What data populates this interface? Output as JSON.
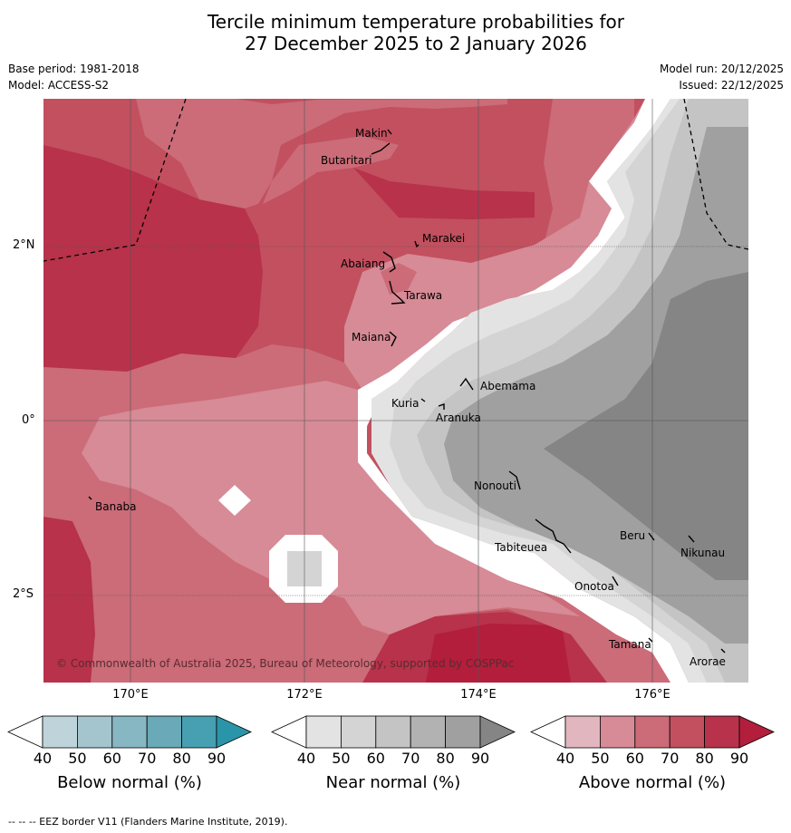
{
  "title_line1": "Tercile minimum temperature probabilities for",
  "title_line2": "27 December 2025 to 2 January 2026",
  "meta_left": {
    "base_period": "Base period: 1981-2018",
    "model": "Model: ACCESS-S2"
  },
  "meta_right": {
    "model_run": "Model run: 20/12/2025",
    "issued": "Issued: 22/12/2025"
  },
  "lon_labels": [
    "170°E",
    "172°E",
    "174°E",
    "176°E"
  ],
  "lat_labels": [
    "2°N",
    "0°",
    "2°S"
  ],
  "places": [
    "Makin",
    "Butaritari",
    "Marakei",
    "Abaiang",
    "Tarawa",
    "Maiana",
    "Abemama",
    "Kuria",
    "Aranuka",
    "Banaba",
    "Nonouti",
    "Tabiteuea",
    "Beru",
    "Nikunau",
    "Onotoa",
    "Tamana",
    "Arorae"
  ],
  "copyright": "© Commonwealth of Australia 2025, Bureau of Meteorology, supported by COSPPac",
  "colorbars": [
    {
      "title": "Below normal (%)",
      "ticks": [
        "40",
        "50",
        "60",
        "70",
        "80",
        "90"
      ],
      "colors": [
        "#ffffff",
        "#bfd4da",
        "#a4c5cd",
        "#87b7c3",
        "#6aa9b8",
        "#46a0b1",
        "#2a95a8"
      ]
    },
    {
      "title": "Near normal (%)",
      "ticks": [
        "40",
        "50",
        "60",
        "70",
        "80",
        "90"
      ],
      "colors": [
        "#ffffff",
        "#e3e3e3",
        "#d4d4d4",
        "#c4c4c4",
        "#b2b2b2",
        "#a0a0a0",
        "#858585"
      ]
    },
    {
      "title": "Above normal (%)",
      "ticks": [
        "40",
        "50",
        "60",
        "70",
        "80",
        "90"
      ],
      "colors": [
        "#ffffff",
        "#e2b6bf",
        "#d68b96",
        "#cb6c78",
        "#c2505f",
        "#b7324a",
        "#b21e3c"
      ]
    }
  ],
  "footer": "--  --  -- EEZ border V11 (Flanders Marine Institute, 2019).",
  "colors": {
    "above_50": "#d68b96",
    "above_60": "#cb6c78",
    "above_70": "#c2505f",
    "above_80": "#b7324a",
    "above_90": "#b21e3c",
    "near_40": "#e3e3e3",
    "near_50": "#d4d4d4",
    "near_60": "#c4c4c4",
    "near_70": "#a0a0a0",
    "near_80": "#858585"
  }
}
